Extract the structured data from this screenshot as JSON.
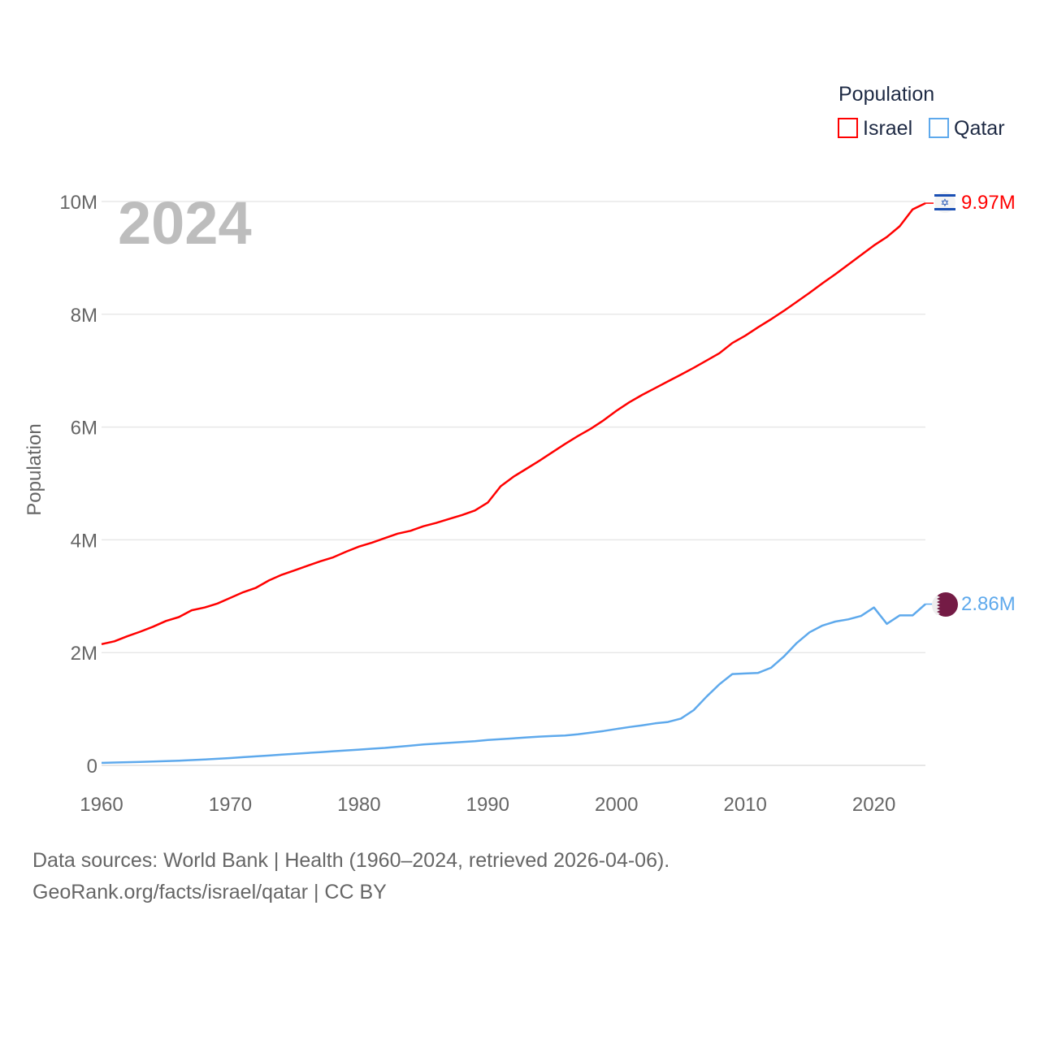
{
  "chart_data": {
    "type": "line",
    "title": "",
    "year_label": "2024",
    "xlabel": "",
    "ylabel": "Population",
    "legend": {
      "title": "Population",
      "placement": "top-right"
    },
    "xlim": [
      1960,
      2024
    ],
    "ylim": [
      0,
      10000000
    ],
    "x_ticks": [
      "1960",
      "1970",
      "1980",
      "1990",
      "2000",
      "2010",
      "2020"
    ],
    "y_ticks": [
      {
        "v": 0,
        "label": "0"
      },
      {
        "v": 2000000,
        "label": "2M"
      },
      {
        "v": 4000000,
        "label": "4M"
      },
      {
        "v": 6000000,
        "label": "6M"
      },
      {
        "v": 8000000,
        "label": "8M"
      },
      {
        "v": 10000000,
        "label": "10M"
      }
    ],
    "grid": true,
    "x": [
      1960,
      1961,
      1962,
      1963,
      1964,
      1965,
      1966,
      1967,
      1968,
      1969,
      1970,
      1971,
      1972,
      1973,
      1974,
      1975,
      1976,
      1977,
      1978,
      1979,
      1980,
      1981,
      1982,
      1983,
      1984,
      1985,
      1986,
      1987,
      1988,
      1989,
      1990,
      1991,
      1992,
      1993,
      1994,
      1995,
      1996,
      1997,
      1998,
      1999,
      2000,
      2001,
      2002,
      2003,
      2004,
      2005,
      2006,
      2007,
      2008,
      2009,
      2010,
      2011,
      2012,
      2013,
      2014,
      2015,
      2016,
      2017,
      2018,
      2019,
      2020,
      2021,
      2022,
      2023,
      2024
    ],
    "series": [
      {
        "name": "Israel",
        "color": "#ff0000",
        "end_label": "9.97M",
        "values": [
          2.15,
          2.2,
          2.29,
          2.37,
          2.46,
          2.56,
          2.63,
          2.75,
          2.8,
          2.87,
          2.97,
          3.07,
          3.15,
          3.28,
          3.38,
          3.46,
          3.54,
          3.62,
          3.69,
          3.79,
          3.88,
          3.95,
          4.03,
          4.11,
          4.16,
          4.24,
          4.3,
          4.37,
          4.44,
          4.52,
          4.66,
          4.95,
          5.12,
          5.26,
          5.4,
          5.55,
          5.7,
          5.84,
          5.97,
          6.12,
          6.29,
          6.44,
          6.57,
          6.69,
          6.81,
          6.93,
          7.05,
          7.18,
          7.31,
          7.49,
          7.62,
          7.77,
          7.91,
          8.06,
          8.22,
          8.38,
          8.55,
          8.71,
          8.88,
          9.05,
          9.22,
          9.37,
          9.56,
          9.86,
          9.97
        ],
        "unit": "million"
      },
      {
        "name": "Qatar",
        "color": "#5ea9ec",
        "end_label": "2.86M",
        "values": [
          0.045,
          0.05,
          0.056,
          0.062,
          0.069,
          0.076,
          0.084,
          0.094,
          0.104,
          0.116,
          0.13,
          0.145,
          0.16,
          0.175,
          0.19,
          0.205,
          0.22,
          0.235,
          0.25,
          0.265,
          0.28,
          0.295,
          0.31,
          0.33,
          0.35,
          0.37,
          0.385,
          0.4,
          0.415,
          0.43,
          0.45,
          0.465,
          0.48,
          0.495,
          0.51,
          0.52,
          0.53,
          0.55,
          0.58,
          0.61,
          0.645,
          0.68,
          0.71,
          0.745,
          0.77,
          0.83,
          0.98,
          1.22,
          1.44,
          1.62,
          1.63,
          1.64,
          1.73,
          1.93,
          2.17,
          2.36,
          2.48,
          2.55,
          2.59,
          2.65,
          2.8,
          2.51,
          2.66,
          2.66,
          2.86
        ],
        "unit": "million"
      }
    ]
  },
  "footer": {
    "line1": "Data sources: World Bank | Health (1960–2024, retrieved 2026-04-06).",
    "line2": "GeoRank.org/facts/israel/qatar | CC BY"
  }
}
